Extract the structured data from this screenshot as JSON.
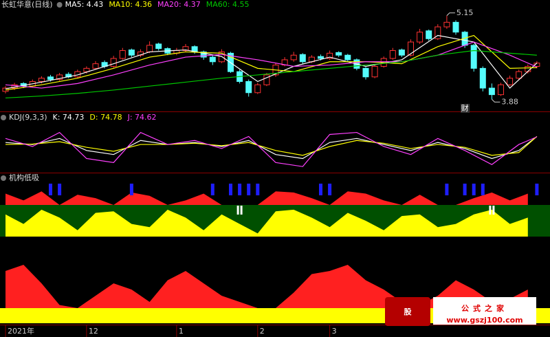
{
  "chart_data": [
    {
      "type": "candlestick",
      "title": "长虹华意(日线)",
      "ohlc": [
        [
          4.0,
          4.08,
          3.97,
          4.05
        ],
        [
          4.05,
          4.13,
          4.02,
          4.1
        ],
        [
          4.12,
          4.14,
          4.05,
          4.08
        ],
        [
          4.08,
          4.18,
          4.06,
          4.15
        ],
        [
          4.15,
          4.23,
          4.12,
          4.2
        ],
        [
          4.22,
          4.25,
          4.15,
          4.18
        ],
        [
          4.18,
          4.28,
          4.16,
          4.25
        ],
        [
          4.26,
          4.29,
          4.2,
          4.22
        ],
        [
          4.22,
          4.33,
          4.2,
          4.3
        ],
        [
          4.3,
          4.38,
          4.27,
          4.35
        ],
        [
          4.35,
          4.46,
          4.33,
          4.42
        ],
        [
          4.44,
          4.47,
          4.35,
          4.38
        ],
        [
          4.38,
          4.54,
          4.36,
          4.5
        ],
        [
          4.5,
          4.66,
          4.48,
          4.62
        ],
        [
          4.63,
          4.65,
          4.52,
          4.55
        ],
        [
          4.55,
          4.64,
          4.52,
          4.6
        ],
        [
          4.6,
          4.76,
          4.58,
          4.7
        ],
        [
          4.72,
          4.74,
          4.62,
          4.65
        ],
        [
          4.65,
          4.67,
          4.55,
          4.58
        ],
        [
          4.58,
          4.66,
          4.55,
          4.62
        ],
        [
          4.62,
          4.72,
          4.6,
          4.68
        ],
        [
          4.68,
          4.7,
          4.57,
          4.6
        ],
        [
          4.6,
          4.62,
          4.48,
          4.52
        ],
        [
          4.52,
          4.55,
          4.4,
          4.45
        ],
        [
          4.45,
          4.64,
          4.43,
          4.6
        ],
        [
          4.58,
          4.6,
          4.28,
          4.3
        ],
        [
          4.3,
          4.33,
          4.12,
          4.15
        ],
        [
          4.15,
          4.18,
          3.92,
          3.98
        ],
        [
          3.98,
          4.13,
          3.96,
          4.1
        ],
        [
          4.1,
          4.28,
          4.08,
          4.25
        ],
        [
          4.25,
          4.43,
          4.22,
          4.4
        ],
        [
          4.4,
          4.52,
          4.38,
          4.48
        ],
        [
          4.48,
          4.6,
          4.45,
          4.55
        ],
        [
          4.56,
          4.58,
          4.42,
          4.45
        ],
        [
          4.45,
          4.55,
          4.43,
          4.52
        ],
        [
          4.53,
          4.56,
          4.47,
          4.5
        ],
        [
          4.5,
          4.62,
          4.48,
          4.58
        ],
        [
          4.59,
          4.61,
          4.52,
          4.55
        ],
        [
          4.55,
          4.57,
          4.45,
          4.48
        ],
        [
          4.48,
          4.5,
          4.32,
          4.35
        ],
        [
          4.35,
          4.37,
          4.18,
          4.22
        ],
        [
          4.22,
          4.41,
          4.2,
          4.38
        ],
        [
          4.38,
          4.53,
          4.36,
          4.5
        ],
        [
          4.5,
          4.66,
          4.48,
          4.62
        ],
        [
          4.63,
          4.65,
          4.52,
          4.55
        ],
        [
          4.55,
          4.79,
          4.53,
          4.75
        ],
        [
          4.75,
          4.95,
          4.72,
          4.9
        ],
        [
          4.92,
          4.94,
          4.77,
          4.8
        ],
        [
          4.8,
          5.02,
          4.78,
          4.98
        ],
        [
          4.98,
          5.15,
          4.95,
          5.05
        ],
        [
          5.05,
          5.08,
          4.86,
          4.9
        ],
        [
          4.9,
          4.92,
          4.66,
          4.7
        ],
        [
          4.7,
          4.72,
          4.3,
          4.35
        ],
        [
          4.35,
          4.38,
          4.0,
          4.05
        ],
        [
          4.05,
          4.12,
          3.88,
          3.95
        ],
        [
          3.95,
          4.13,
          3.93,
          4.1
        ],
        [
          4.1,
          4.24,
          4.08,
          4.2
        ],
        [
          4.2,
          4.33,
          4.17,
          4.3
        ],
        [
          4.3,
          4.41,
          4.27,
          4.38
        ],
        [
          4.38,
          4.46,
          4.35,
          4.43
        ]
      ],
      "up_color": "#ff3232",
      "down_color": "#54fcfc",
      "x": [
        0,
        4,
        8,
        12,
        16,
        20,
        24,
        28,
        32,
        36,
        40,
        44,
        48,
        52,
        56,
        59
      ],
      "series": [
        {
          "name": "MA5: 4.43",
          "color": "#ffffff",
          "values": [
            4.04,
            4.14,
            4.25,
            4.42,
            4.6,
            4.63,
            4.53,
            4.15,
            4.38,
            4.52,
            4.38,
            4.48,
            4.85,
            4.75,
            4.05,
            4.43
          ]
        },
        {
          "name": "MA10: 4.36",
          "color": "#ffff00",
          "values": [
            4.02,
            4.1,
            4.2,
            4.35,
            4.52,
            4.6,
            4.58,
            4.35,
            4.3,
            4.45,
            4.45,
            4.42,
            4.68,
            4.85,
            4.35,
            4.36
          ]
        },
        {
          "name": "MA20: 4.37",
          "color": "#ff40ff",
          "values": [
            4.1,
            4.05,
            4.12,
            4.25,
            4.4,
            4.52,
            4.56,
            4.48,
            4.38,
            4.4,
            4.45,
            4.45,
            4.55,
            4.75,
            4.55,
            4.37
          ]
        },
        {
          "name": "MA60: 4.55",
          "color": "#00c800",
          "values": [
            3.9,
            3.93,
            3.97,
            4.02,
            4.08,
            4.14,
            4.2,
            4.25,
            4.3,
            4.35,
            4.4,
            4.45,
            4.55,
            4.62,
            4.58,
            4.55
          ]
        }
      ],
      "max_mark": {
        "x": 49,
        "value": 5.15
      },
      "min_mark": {
        "x": 54,
        "value": 3.88
      },
      "event_mark": {
        "x": 51,
        "label": "财"
      },
      "ylim": [
        3.8,
        5.2
      ]
    },
    {
      "type": "line",
      "title": "KDJ(9,3,3)",
      "x": [
        0,
        3,
        6,
        9,
        12,
        15,
        18,
        21,
        24,
        27,
        30,
        33,
        36,
        39,
        42,
        45,
        48,
        51,
        54,
        57,
        59
      ],
      "series": [
        {
          "name": "K: 74.73",
          "color": "#ffffff",
          "values": [
            60,
            55,
            70,
            40,
            30,
            65,
            55,
            60,
            50,
            65,
            30,
            20,
            60,
            70,
            55,
            40,
            60,
            45,
            20,
            40,
            75
          ]
        },
        {
          "name": "D: 74.78",
          "color": "#ffff00",
          "values": [
            55,
            56,
            62,
            48,
            38,
            55,
            55,
            58,
            52,
            60,
            40,
            28,
            50,
            65,
            58,
            45,
            55,
            48,
            28,
            35,
            75
          ]
        },
        {
          "name": "J: 74.62",
          "color": "#ff40ff",
          "values": [
            70,
            50,
            85,
            20,
            10,
            85,
            55,
            65,
            45,
            75,
            10,
            0,
            80,
            85,
            50,
            30,
            70,
            40,
            5,
            55,
            74
          ]
        }
      ],
      "ylim": [
        -10,
        110
      ]
    },
    {
      "type": "indicator",
      "title": "机构低吸",
      "x": [
        0,
        2,
        4,
        6,
        8,
        10,
        12,
        14,
        16,
        18,
        20,
        22,
        24,
        26,
        28,
        30,
        32,
        34,
        36,
        38,
        40,
        42,
        44,
        46,
        48,
        50,
        52,
        54,
        56,
        58
      ],
      "red_values": [
        50,
        20,
        60,
        0,
        45,
        30,
        0,
        55,
        40,
        0,
        20,
        50,
        0,
        0,
        0,
        60,
        55,
        30,
        0,
        60,
        50,
        20,
        0,
        45,
        0,
        0,
        30,
        55,
        20,
        50
      ],
      "yellow_values": [
        70,
        40,
        85,
        60,
        20,
        75,
        80,
        40,
        30,
        85,
        60,
        20,
        70,
        40,
        10,
        80,
        85,
        60,
        30,
        75,
        50,
        20,
        65,
        70,
        30,
        40,
        70,
        85,
        40,
        60
      ],
      "bottom_red_values": [
        60,
        70,
        40,
        5,
        0,
        20,
        40,
        30,
        10,
        45,
        60,
        40,
        20,
        10,
        0,
        0,
        25,
        55,
        60,
        70,
        45,
        30,
        10,
        5,
        20,
        45,
        30,
        10,
        15,
        30
      ],
      "blue_bars": [
        5,
        6,
        14,
        23,
        25,
        26,
        27,
        28,
        35,
        36,
        49,
        51,
        52,
        53,
        59
      ],
      "white_marks": [
        26,
        54
      ],
      "ylim": [
        0,
        100
      ]
    }
  ],
  "xticks": [
    {
      "value": 0,
      "label": "2021年"
    },
    {
      "value": 9,
      "label": "12"
    },
    {
      "value": 19,
      "label": "1"
    },
    {
      "value": 28,
      "label": "2"
    },
    {
      "value": 36,
      "label": "3"
    }
  ],
  "watermark": {
    "icon": "股",
    "name": "公式之家",
    "url": "www.gszj100.com"
  }
}
